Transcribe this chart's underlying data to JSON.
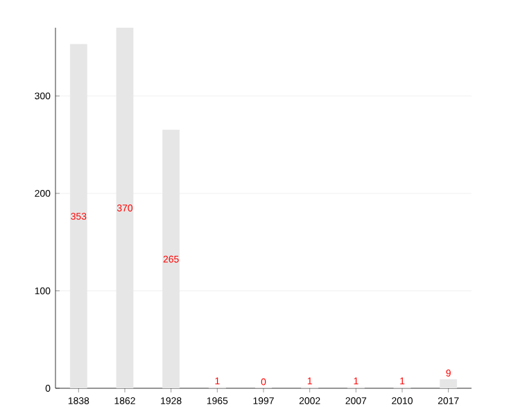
{
  "chart_data": {
    "type": "bar",
    "categories": [
      "1838",
      "1862",
      "1928",
      "1965",
      "1997",
      "2002",
      "2007",
      "2010",
      "2017"
    ],
    "values": [
      353,
      370,
      265,
      1,
      0,
      1,
      1,
      1,
      9
    ],
    "color": "#e6e6e6",
    "ylim": [
      0,
      370
    ],
    "yticks": [
      0,
      100,
      200,
      300
    ],
    "grid": "y",
    "data_labels": true
  }
}
